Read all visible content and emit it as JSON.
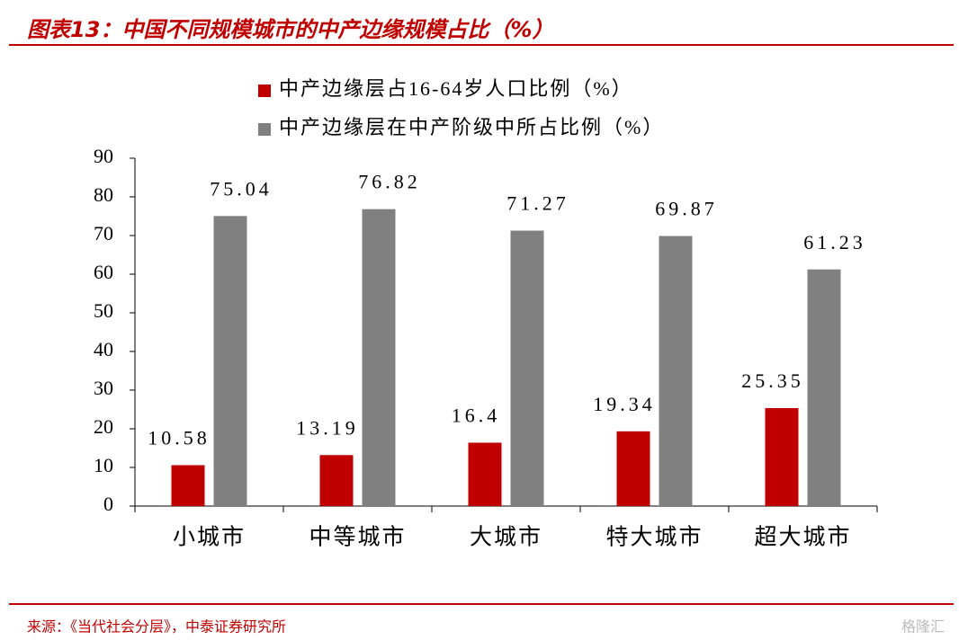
{
  "title": "图表13：中国不同规模城市的中产边缘规模占比（%）",
  "source": "来源：《当代社会分层》，中泰证券研究所",
  "watermark": "格隆汇",
  "chart_data": {
    "type": "bar",
    "categories": [
      "小城市",
      "中等城市",
      "大城市",
      "特大城市",
      "超大城市"
    ],
    "series": [
      {
        "name": "中产边缘层占16-64岁人口比例（%）",
        "color": "#c00000",
        "values": [
          10.58,
          13.19,
          16.4,
          19.34,
          25.35
        ]
      },
      {
        "name": "中产边缘层在中产阶级中所占比例（%）",
        "color": "#808080",
        "values": [
          75.04,
          76.82,
          71.27,
          69.87,
          61.23
        ]
      }
    ],
    "ylim": [
      0,
      90
    ],
    "yticks": [
      0,
      10,
      20,
      30,
      40,
      50,
      60,
      70,
      80,
      90
    ]
  }
}
